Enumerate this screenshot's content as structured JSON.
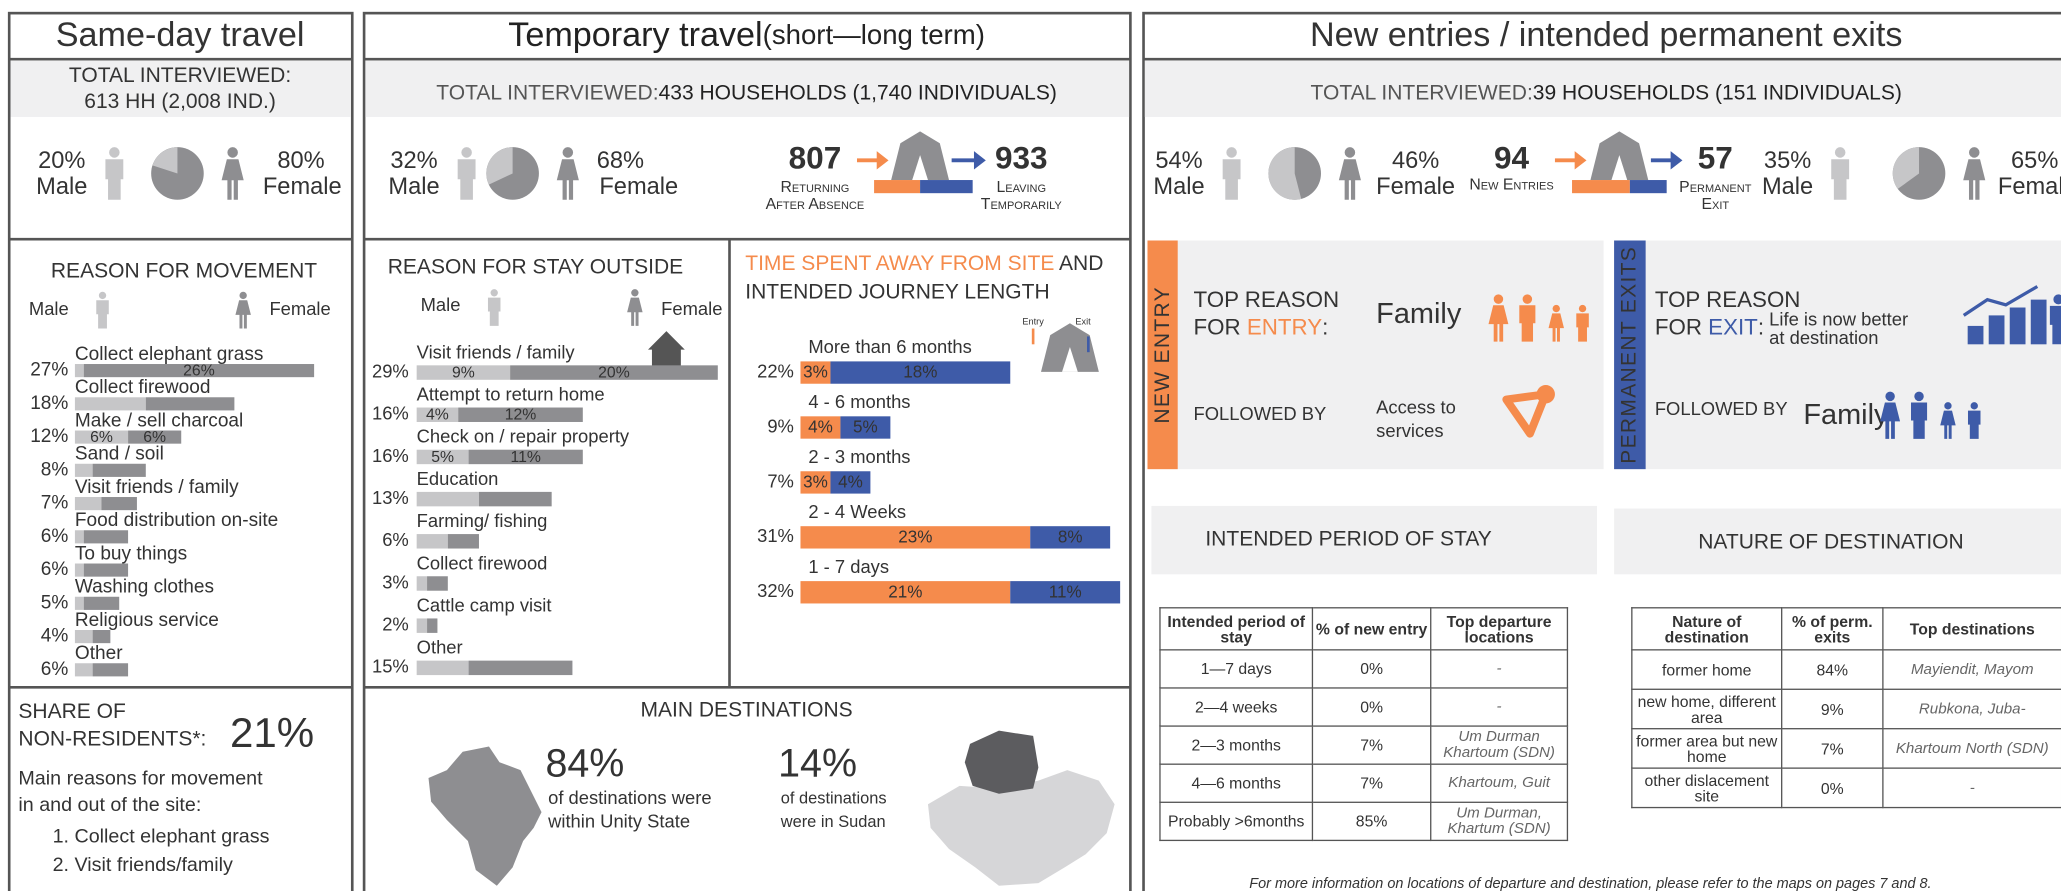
{
  "same_day": {
    "title": "Same-day travel",
    "total_label": "TOTAL INTERVIEWED:",
    "total_value": "613 HH (2,008 IND.)",
    "male_pct": "20%",
    "male": "Male",
    "female_pct": "80%",
    "female": "Female",
    "reasons_title": "REASON FOR MOVEMENT",
    "legend_male": "Male",
    "legend_female": "Female",
    "reasons": [
      {
        "label": "Collect elephant grass",
        "value_label": "27%",
        "male": 1,
        "female": 26,
        "female_label": "26%"
      },
      {
        "label": "Collect firewood",
        "value_label": "18%",
        "male": 8,
        "female": 10
      },
      {
        "label": "Make / sell charcoal",
        "value_label": "12%",
        "male": 6,
        "male_label": "6%",
        "female": 6,
        "female_label": "6%"
      },
      {
        "label": "Sand / soil",
        "value_label": "8%",
        "male": 2,
        "female": 6
      },
      {
        "label": "Visit friends / family",
        "value_label": "7%",
        "male": 3,
        "female": 4
      },
      {
        "label": "Food distribution on-site",
        "value_label": "6%",
        "male": 1,
        "female": 5
      },
      {
        "label": "To buy things",
        "value_label": "6%",
        "male": 1,
        "female": 5
      },
      {
        "label": "Washing clothes",
        "value_label": "5%",
        "male": 1,
        "female": 4
      },
      {
        "label": "Religious service",
        "value_label": "4%",
        "male": 2,
        "female": 2
      },
      {
        "label": "Other",
        "value_label": "6%",
        "male": 2,
        "female": 4
      }
    ],
    "share_title_1": "SHARE OF",
    "share_title_2": "NON-RESIDENTS*:",
    "share_value": "21%",
    "main_reasons_1": "Main reasons for movement",
    "main_reasons_2": "in and out of the site:",
    "main_reasons": [
      "1. Collect elephant grass",
      "2. Visit friends/family"
    ]
  },
  "temporary": {
    "title": "Temporary travel",
    "title_suffix": "(short—long term)",
    "total_label": "TOTAL INTERVIEWED:",
    "total_value": "433 HOUSEHOLDS (1,740 INDIVIDUALS)",
    "male_pct": "32%",
    "male": "Male",
    "female_pct": "68%",
    "female": "Female",
    "returning_value": "807",
    "returning_label_1": "Returning",
    "returning_label_2": "After Absence",
    "leaving_value": "933",
    "leaving_label_1": "Leaving",
    "leaving_label_2": "Temporarily",
    "reasons_title": "REASON FOR STAY OUTSIDE",
    "legend_male": "Male",
    "legend_female": "Female",
    "reasons": [
      {
        "label": "Visit friends / family",
        "value_label": "29%",
        "male": 9,
        "male_label": "9%",
        "female": 20,
        "female_label": "20%"
      },
      {
        "label": "Attempt to return home",
        "value_label": "16%",
        "male": 4,
        "male_label": "4%",
        "female": 12,
        "female_label": "12%"
      },
      {
        "label": "Check on / repair property",
        "value_label": "16%",
        "male": 5,
        "male_label": "5%",
        "female": 11,
        "female_label": "11%"
      },
      {
        "label": "Education",
        "value_label": "13%",
        "male": 6,
        "female": 7
      },
      {
        "label": "Farming/ fishing",
        "value_label": "6%",
        "male": 3,
        "female": 3
      },
      {
        "label": "Collect firewood",
        "value_label": "3%",
        "male": 1,
        "female": 2
      },
      {
        "label": "Cattle camp visit",
        "value_label": "2%",
        "male": 1,
        "female": 1
      },
      {
        "label": "Other",
        "value_label": "15%",
        "male": 5,
        "female": 10
      }
    ],
    "time_title_1": "TIME SPENT AWAY FROM SITE",
    "time_title_and": " AND",
    "time_title_2": "INTENDED JOURNEY LENGTH",
    "entry": "Entry",
    "exit": "Exit",
    "durations": [
      {
        "label": "More than 6 months",
        "value_label": "22%",
        "returning": 3,
        "returning_label": "3%",
        "leaving": 18,
        "leaving_label": "18%"
      },
      {
        "label": "4 - 6 months",
        "value_label": "9%",
        "returning": 4,
        "returning_label": "4%",
        "leaving": 5,
        "leaving_label": "5%"
      },
      {
        "label": "2 - 3 months",
        "value_label": "7%",
        "returning": 3,
        "returning_label": "3%",
        "leaving": 4,
        "leaving_label": "4%"
      },
      {
        "label": "2 - 4 Weeks",
        "value_label": "31%",
        "returning": 23,
        "returning_label": "23%",
        "leaving": 8,
        "leaving_label": "8%"
      },
      {
        "label": "1 - 7 days",
        "value_label": "32%",
        "returning": 21,
        "returning_label": "21%",
        "leaving": 11,
        "leaving_label": "11%"
      }
    ],
    "destinations_title": "MAIN DESTINATIONS",
    "unity_pct": "84%",
    "unity_text_1": "of destinations were",
    "unity_text_2": "within Unity State",
    "sudan_pct": "14%",
    "sudan_text_1": "of destinations",
    "sudan_text_2": "were in Sudan"
  },
  "new_entries": {
    "title": "New entries / intended permanent exits",
    "total_label": "TOTAL INTERVIEWED:",
    "total_value": "39 HOUSEHOLDS (151 INDIVIDUALS)",
    "entry_gender": {
      "male_pct": "54%",
      "male": "Male",
      "female_pct": "46%",
      "female": "Female"
    },
    "new_entries_value": "94",
    "new_entries_label": "New Entries",
    "exit_value": "57",
    "exit_label_1": "Permanent",
    "exit_label_2": "Exit",
    "exit_gender": {
      "male_pct": "35%",
      "male": "Male",
      "female_pct": "65%",
      "female": "Female"
    },
    "entry_box": {
      "side": "NEW ENTRY",
      "top_reason_1": "TOP REASON",
      "top_reason_2": "FOR ",
      "top_reason_3": "ENTRY",
      "colon": ":",
      "top_value": "Family",
      "followed": "FOLLOWED BY",
      "followed_value_1": "Access to",
      "followed_value_2": "services"
    },
    "exit_box": {
      "side": "PERMANENT EXITS",
      "top_reason_1": "TOP REASON",
      "top_reason_2": "FOR ",
      "top_reason_3": "EXIT",
      "colon": ":",
      "top_value_1": "Life is now better",
      "top_value_2": "at destination",
      "followed": "FOLLOWED BY",
      "followed_value": "Family"
    },
    "period_title": "INTENDED PERIOD OF STAY",
    "period_table": {
      "header": [
        "Intended period of stay",
        "% of new entry",
        "Top departure locations"
      ],
      "rows": [
        [
          "1—7 days",
          "0%",
          "-"
        ],
        [
          "2—4 weeks",
          "0%",
          "-"
        ],
        [
          "2—3 months",
          "7%",
          "Um Durman Khartoum (SDN)"
        ],
        [
          "4—6 months",
          "7%",
          "Khartoum, Guit"
        ],
        [
          "Probably >6months",
          "85%",
          "Um Durman, Khartum (SDN)"
        ]
      ]
    },
    "destination_title": "NATURE OF DESTINATION",
    "destination_table": {
      "header": [
        "Nature of destination",
        "% of perm. exits",
        "Top destinations"
      ],
      "rows": [
        [
          "former home",
          "84%",
          "Mayiendit, Mayom"
        ],
        [
          "new home, different area",
          "9%",
          "Rubkona, Juba-"
        ],
        [
          "former area but new home",
          "7%",
          "Khartoum North (SDN)"
        ],
        [
          "other dislacement site",
          "0%",
          "-"
        ]
      ]
    },
    "footnote": "For more information on locations of departure and destination, please refer to the maps on pages 7 and 8."
  }
}
